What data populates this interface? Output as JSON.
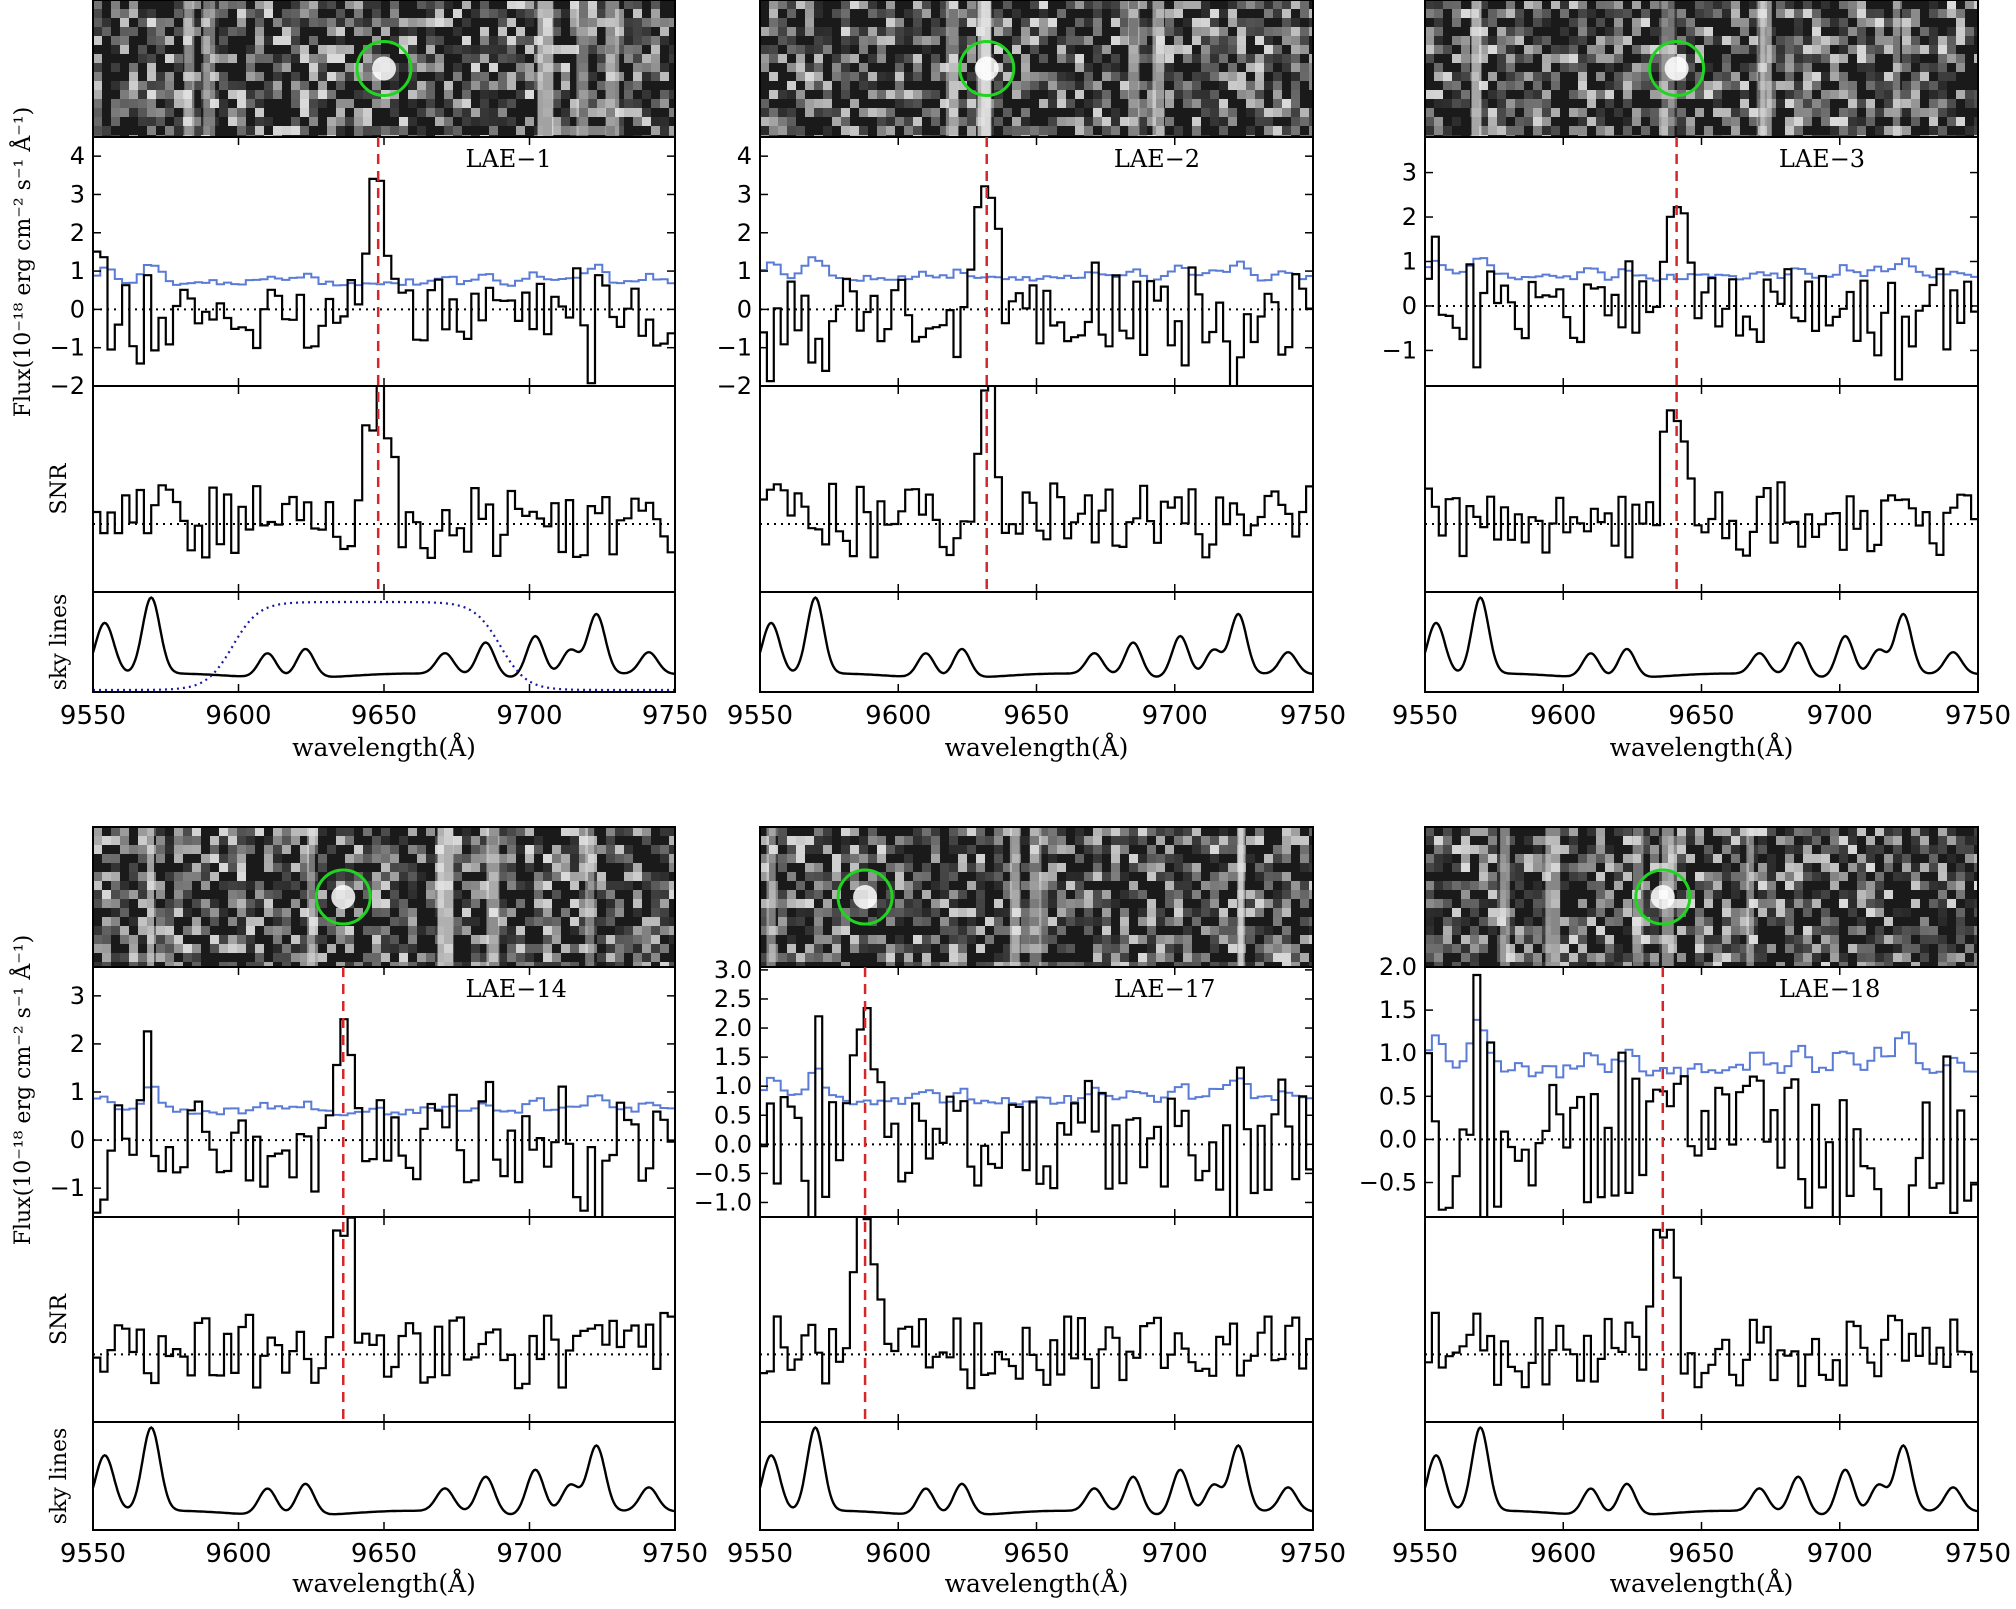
{
  "shared": {
    "x_tick_labels": [
      "9550",
      "9600",
      "9650",
      "9700",
      "9750"
    ],
    "x_ticks": [
      9550,
      9600,
      9650,
      9700,
      9750
    ],
    "xlim": [
      9550,
      9750
    ],
    "xlabel": "wavelength(Å)",
    "flux_ylabel": "Flux(10⁻¹⁸ erg cm⁻² s⁻¹ Å⁻¹)",
    "snr_ylabel": "SNR",
    "sky_ylabel": "sky lines"
  },
  "colors": {
    "spectrum": "#000000",
    "noise": "#5a7bd6",
    "line_marker": "#d62728",
    "aperture": "#22d422",
    "filter": "#1a1aaa"
  },
  "chart_data": [
    {
      "type": "line",
      "label": "LAE−1",
      "line_center": 9648,
      "source_pos": 9650,
      "flux_ylim": [
        -2,
        4.5
      ],
      "flux_ticks": [
        -2,
        -1,
        0,
        1,
        2,
        3,
        4
      ],
      "flux_tick_labels": [
        "−2",
        "−1",
        "0",
        "1",
        "2",
        "3",
        "4"
      ],
      "flux_peak": 3.4,
      "flux_noise": 1.1,
      "noise_level": 0.65,
      "snr_peak": 0.85,
      "filter_curve": true
    },
    {
      "type": "line",
      "label": "LAE−2",
      "line_center": 9632,
      "source_pos": 9632,
      "flux_ylim": [
        -2,
        4.5
      ],
      "flux_ticks": [
        -2,
        -1,
        0,
        1,
        2,
        3,
        4
      ],
      "flux_tick_labels": [
        "−2",
        "−1",
        "0",
        "1",
        "2",
        "3",
        "4"
      ],
      "flux_peak": 3.6,
      "flux_noise": 1.2,
      "noise_level": 0.75,
      "snr_peak": 0.85,
      "filter_curve": false
    },
    {
      "type": "line",
      "label": "LAE−3",
      "line_center": 9641,
      "source_pos": 9641,
      "flux_ylim": [
        -1.8,
        3.8
      ],
      "flux_ticks": [
        -1,
        0,
        1,
        2,
        3
      ],
      "flux_tick_labels": [
        "−1",
        "0",
        "1",
        "2",
        "3"
      ],
      "flux_peak": 2.4,
      "flux_noise": 0.95,
      "noise_level": 0.6,
      "snr_peak": 0.85,
      "filter_curve": false
    },
    {
      "type": "line",
      "label": "LAE−14",
      "line_center": 9636,
      "source_pos": 9636,
      "flux_ylim": [
        -1.6,
        3.6
      ],
      "flux_ticks": [
        -1,
        0,
        1,
        2,
        3
      ],
      "flux_tick_labels": [
        "−1",
        "0",
        "1",
        "2",
        "3"
      ],
      "flux_peak": 2.3,
      "flux_noise": 1.1,
      "noise_level": 0.55,
      "snr_peak": 0.85,
      "filter_curve": false
    },
    {
      "type": "line",
      "label": "LAE−17",
      "line_center": 9588,
      "source_pos": 9588,
      "flux_ylim": [
        -1.25,
        3.05
      ],
      "flux_ticks": [
        -1.0,
        -0.5,
        0.0,
        0.5,
        1.0,
        1.5,
        2.0,
        2.5,
        3.0
      ],
      "flux_tick_labels": [
        "−1.0",
        "−0.5",
        "0.0",
        "0.5",
        "1.0",
        "1.5",
        "2.0",
        "2.5",
        "3.0"
      ],
      "flux_peak": 2.1,
      "flux_noise": 1.0,
      "noise_level": 0.7,
      "snr_peak": 0.9,
      "filter_curve": false
    },
    {
      "type": "line",
      "label": "LAE−18",
      "line_center": 9636,
      "source_pos": 9636,
      "flux_ylim": [
        -0.9,
        2.0
      ],
      "flux_ticks": [
        -0.5,
        0.0,
        0.5,
        1.0,
        1.5,
        2.0
      ],
      "flux_tick_labels": [
        "−0.5",
        "0.0",
        "0.5",
        "1.0",
        "1.5",
        "2.0"
      ],
      "flux_peak": 1.2,
      "flux_noise": 0.9,
      "noise_level": 0.75,
      "snr_peak": 0.85,
      "filter_curve": false
    }
  ]
}
